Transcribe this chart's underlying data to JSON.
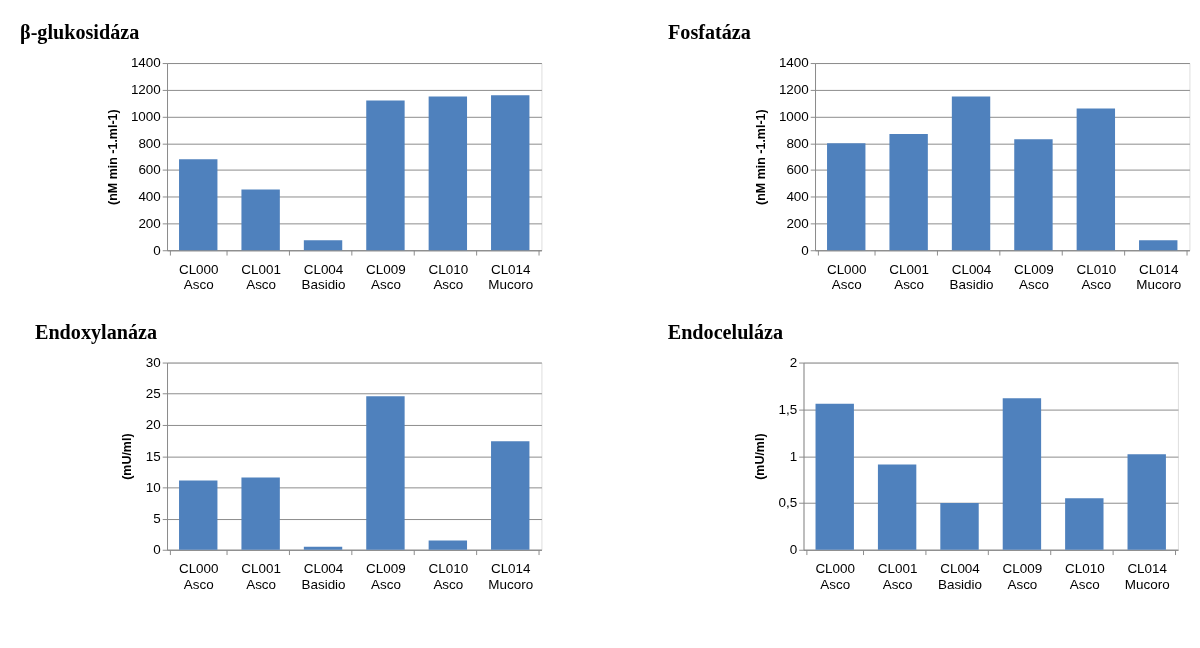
{
  "chart_data": [
    {
      "type": "bar",
      "title": "β-glukosidáza",
      "ylabel": "(nM min -1.ml-1)",
      "categories": [
        "CL000 Asco",
        "CL001 Asco",
        "CL004 Basidio",
        "CL009 Asco",
        "CL010 Asco",
        "CL014 Mucoro"
      ],
      "values": [
        680,
        455,
        75,
        1120,
        1150,
        1160
      ],
      "color": "#4f81bd",
      "ylim": [
        0,
        1400
      ],
      "yticks": [
        0,
        200,
        400,
        600,
        800,
        1000,
        1200,
        1400
      ],
      "grid": "y"
    },
    {
      "type": "bar",
      "title": "Fosfatáza",
      "ylabel": "(nM min -1.ml-1)",
      "categories": [
        "CL000 Asco",
        "CL001 Asco",
        "CL004 Basidio",
        "CL009 Asco",
        "CL010 Asco",
        "CL014 Mucoro"
      ],
      "values": [
        800,
        870,
        1150,
        830,
        1060,
        75
      ],
      "color": "#4f81bd",
      "ylim": [
        0,
        1400
      ],
      "yticks": [
        0,
        200,
        400,
        600,
        800,
        1000,
        1200,
        1400
      ],
      "grid": "y"
    },
    {
      "type": "bar",
      "title": "Endoxylanáza",
      "ylabel": "(mU/ml)",
      "categories": [
        "CL000 Asco",
        "CL001 Asco",
        "CL004 Basidio",
        "CL009 Asco",
        "CL010 Asco",
        "CL014 Mucoro"
      ],
      "values": [
        11.1,
        11.6,
        0.5,
        24.6,
        1.5,
        17.4
      ],
      "color": "#4f81bd",
      "ylim": [
        0,
        30
      ],
      "yticks": [
        0,
        5,
        10,
        15,
        20,
        25,
        30
      ],
      "grid": "y"
    },
    {
      "type": "bar",
      "title": "Endoceluláza",
      "ylabel": "(mU/ml)",
      "categories": [
        "CL000 Asco",
        "CL001 Asco",
        "CL004 Basidio",
        "CL009 Asco",
        "CL010 Asco",
        "CL014 Mucoro"
      ],
      "values": [
        1.56,
        0.91,
        0.5,
        1.62,
        0.55,
        1.02
      ],
      "color": "#4f81bd",
      "ylim": [
        0,
        2
      ],
      "yticks": [
        0,
        {
          "value": 0.5,
          "label": "0,5"
        },
        1,
        {
          "value": 1.5,
          "label": "1,5"
        },
        2
      ],
      "grid": "y"
    }
  ]
}
